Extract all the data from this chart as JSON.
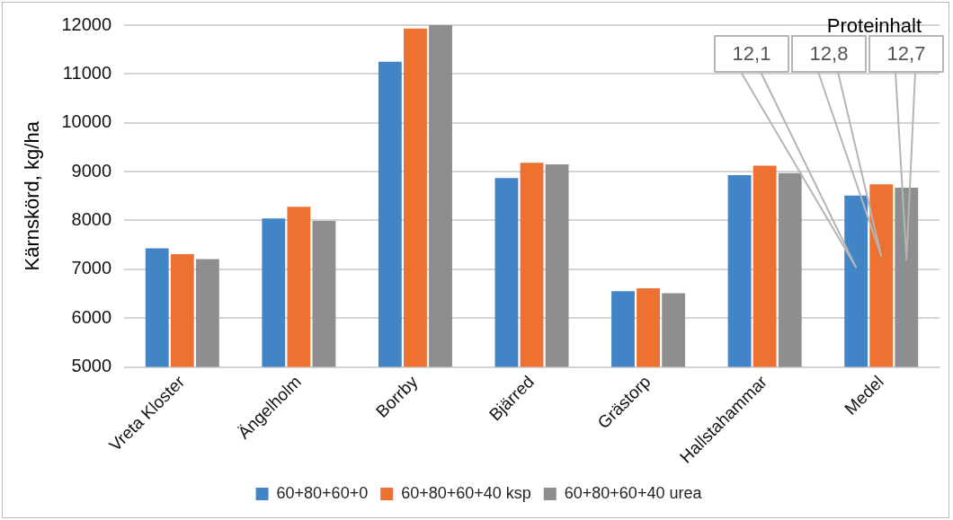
{
  "chart_data": {
    "type": "bar",
    "ylabel": "Kärnskörd, kg/ha",
    "categories": [
      "Vreta Kloster",
      "Ängelholm",
      "Borrby",
      "Bjärred",
      "Grästorp",
      "Hallstahammar",
      "Medel"
    ],
    "series": [
      {
        "name": "60+80+60+0",
        "color": "#4285c6",
        "values": [
          7430,
          8040,
          11250,
          8870,
          6550,
          8930,
          8510
        ]
      },
      {
        "name": "60+80+60+40 ksp",
        "color": "#ed7131",
        "values": [
          7310,
          8280,
          11930,
          9180,
          6610,
          9120,
          8740
        ]
      },
      {
        "name": "60+80+60+40 urea",
        "color": "#8c8e90",
        "values": [
          7210,
          7990,
          12000,
          9150,
          6510,
          8970,
          8670
        ]
      }
    ],
    "ylim": [
      5000,
      12000
    ],
    "yticks": [
      5000,
      6000,
      7000,
      8000,
      9000,
      10000,
      11000,
      12000
    ],
    "grid": "y",
    "legend": "bottom",
    "annotations": [
      "Proteinhalt",
      "12,1",
      "12,8",
      "12,7"
    ]
  }
}
